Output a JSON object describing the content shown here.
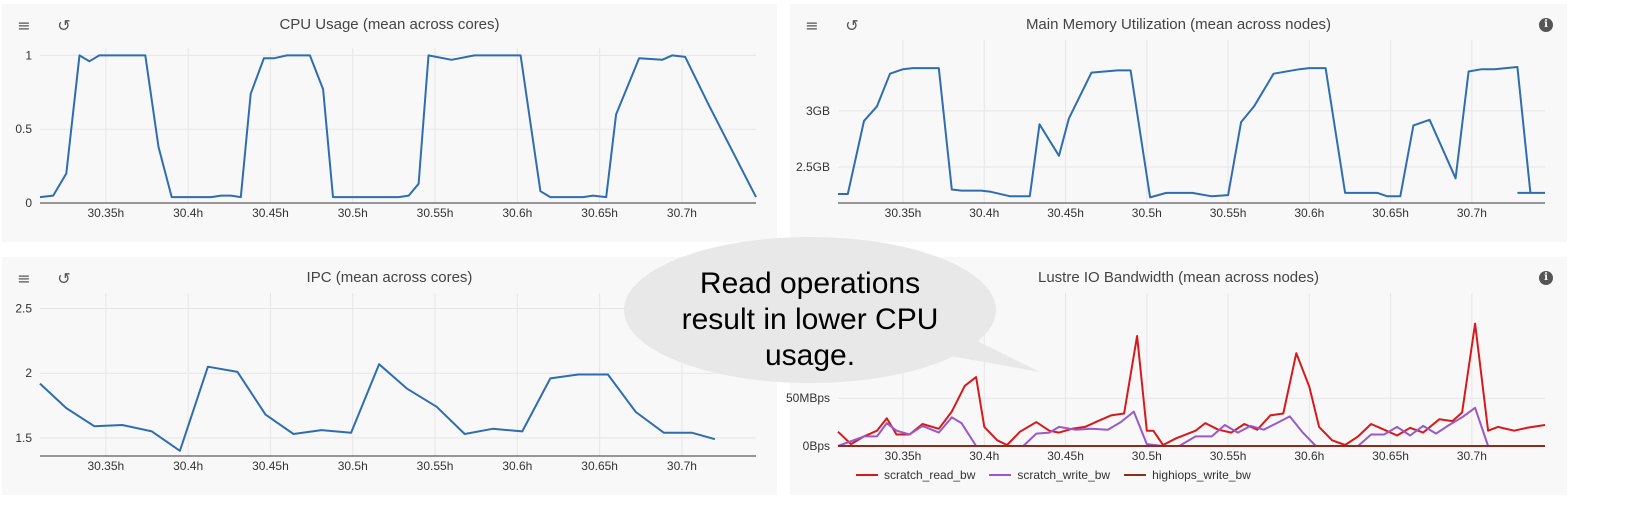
{
  "toolbar": {
    "menu_icon": "≡",
    "reset_icon": "↺",
    "info_icon": "i"
  },
  "panels": [
    {
      "title": "CPU Usage (mean across cores)",
      "has_info": false
    },
    {
      "title": "Main Memory Utilization (mean across nodes)",
      "has_info": true
    },
    {
      "title": "IPC (mean across cores)",
      "has_info": false
    },
    {
      "title": "Lustre IO Bandwidth (mean across nodes)",
      "has_info": true
    }
  ],
  "callout": {
    "lines": [
      "Read operations",
      "result in lower CPU",
      "usage."
    ]
  },
  "chart_data": [
    {
      "type": "line",
      "title": "CPU Usage (mean across cores)",
      "xlim": [
        30.31,
        30.745
      ],
      "ylim": [
        0,
        1.05
      ],
      "xticks": [
        30.35,
        30.4,
        30.45,
        30.5,
        30.55,
        30.6,
        30.65,
        30.7
      ],
      "xtick_labels": [
        "30.35h",
        "30.4h",
        "30.45h",
        "30.5h",
        "30.55h",
        "30.6h",
        "30.65h",
        "30.7h"
      ],
      "yticks": [
        0,
        0.5,
        1
      ],
      "ytick_labels": [
        "0",
        "0.5",
        "1"
      ],
      "grid": true,
      "series": [
        {
          "color": "#2f6db1",
          "x": [
            30.31,
            30.318,
            30.326,
            30.334,
            30.34,
            30.346,
            30.36,
            30.374,
            30.382,
            30.39,
            30.402,
            30.414,
            30.42,
            30.426,
            30.432,
            30.438,
            30.446,
            30.452,
            30.46,
            30.467,
            30.474,
            30.482,
            30.488,
            30.502,
            30.516,
            30.522,
            30.528,
            30.534,
            30.54,
            30.546,
            30.56,
            30.574,
            30.58,
            30.588,
            30.602,
            30.614,
            30.62,
            30.626,
            30.632,
            30.64,
            30.646,
            30.654,
            30.66,
            30.674,
            30.688,
            30.694,
            30.702,
            30.716,
            30.745
          ],
          "y": [
            0.04,
            0.05,
            0.2,
            1.0,
            0.96,
            1.0,
            1.0,
            1.0,
            0.38,
            0.04,
            0.04,
            0.04,
            0.05,
            0.05,
            0.04,
            0.74,
            0.98,
            0.98,
            1.0,
            1.0,
            1.0,
            0.77,
            0.04,
            0.04,
            0.04,
            0.04,
            0.04,
            0.05,
            0.13,
            1.0,
            0.97,
            1.0,
            1.0,
            1.0,
            1.0,
            0.08,
            0.04,
            0.04,
            0.04,
            0.04,
            0.05,
            0.04,
            0.6,
            0.98,
            0.97,
            1.0,
            0.99,
            0.67,
            0.04
          ]
        }
      ]
    },
    {
      "type": "line",
      "title": "Main Memory Utilization (mean across nodes)",
      "xlim": [
        30.31,
        30.745
      ],
      "ylim": [
        2.18,
        3.63
      ],
      "xticks": [
        30.35,
        30.4,
        30.45,
        30.5,
        30.55,
        30.6,
        30.65,
        30.7
      ],
      "xtick_labels": [
        "30.35h",
        "30.4h",
        "30.45h",
        "30.5h",
        "30.55h",
        "30.6h",
        "30.65h",
        "30.7h"
      ],
      "yticks": [
        2.5,
        3
      ],
      "ytick_labels": [
        "2.5GB",
        "3GB"
      ],
      "grid": true,
      "series": [
        {
          "color": "#2f6db1",
          "x": [
            30.31,
            30.316,
            30.326,
            30.334,
            30.342,
            30.35,
            30.356,
            30.366,
            30.372,
            30.38,
            30.386,
            30.398,
            30.404,
            30.416,
            30.422,
            30.428,
            30.434,
            30.446,
            30.452,
            30.466,
            30.474,
            30.482,
            30.49,
            30.502,
            30.512,
            30.518,
            30.528,
            30.54,
            30.55,
            30.558,
            30.566,
            30.578,
            30.594,
            30.6,
            30.61,
            30.622,
            30.63,
            30.636,
            30.642,
            30.648,
            30.656,
            30.664,
            30.674,
            30.69,
            30.698,
            30.706,
            30.714,
            30.728,
            30.736
          ],
          "y": [
            2.26,
            2.26,
            2.91,
            3.04,
            3.33,
            3.37,
            3.38,
            3.38,
            3.38,
            2.3,
            2.29,
            2.29,
            2.28,
            2.24,
            2.24,
            2.24,
            2.88,
            2.6,
            2.93,
            3.34,
            3.35,
            3.36,
            3.36,
            2.23,
            2.27,
            2.27,
            2.27,
            2.24,
            2.25,
            2.9,
            3.04,
            3.33,
            3.37,
            3.38,
            3.38,
            2.27,
            2.27,
            2.27,
            2.27,
            2.24,
            2.24,
            2.87,
            2.92,
            2.4,
            3.35,
            3.37,
            3.37,
            3.39,
            2.27
          ]
        },
        {
          "color": "#2f6db1",
          "x": [
            30.728,
            30.736,
            30.745
          ],
          "y": [
            2.27,
            2.27,
            2.27
          ]
        }
      ]
    },
    {
      "type": "line",
      "title": "IPC (mean across cores)",
      "xlim": [
        30.31,
        30.745
      ],
      "ylim": [
        1.36,
        2.62
      ],
      "xticks": [
        30.35,
        30.4,
        30.45,
        30.5,
        30.55,
        30.6,
        30.65,
        30.7
      ],
      "xtick_labels": [
        "30.35h",
        "30.4h",
        "30.45h",
        "30.5h",
        "30.55h",
        "30.6h",
        "30.65h",
        "30.7h"
      ],
      "yticks": [
        1.5,
        2,
        2.5
      ],
      "ytick_labels": [
        "1.5",
        "2",
        "2.5"
      ],
      "grid": true,
      "series": [
        {
          "color": "#2f6db1",
          "x": [
            30.31,
            30.326,
            30.343,
            30.36,
            30.378,
            30.395,
            30.412,
            30.43,
            30.447,
            30.464,
            30.481,
            30.499,
            30.516,
            30.533,
            30.551,
            30.568,
            30.585,
            30.603,
            30.62,
            30.637,
            30.655,
            30.672,
            30.689,
            30.706,
            30.72
          ],
          "y": [
            1.92,
            1.73,
            1.59,
            1.6,
            1.55,
            1.4,
            2.05,
            2.01,
            1.68,
            1.53,
            1.56,
            1.54,
            2.07,
            1.88,
            1.74,
            1.53,
            1.57,
            1.55,
            1.96,
            1.99,
            1.99,
            1.7,
            1.54,
            1.54,
            1.49
          ]
        }
      ]
    },
    {
      "type": "line",
      "title": "Lustre IO Bandwidth (mean across nodes)",
      "xlim": [
        30.31,
        30.745
      ],
      "ylim": [
        0,
        160
      ],
      "xticks": [
        30.35,
        30.4,
        30.45,
        30.5,
        30.55,
        30.6,
        30.65,
        30.7
      ],
      "xtick_labels": [
        "30.35h",
        "30.4h",
        "30.45h",
        "30.5h",
        "30.55h",
        "30.6h",
        "30.65h",
        "30.7h"
      ],
      "yticks": [
        0,
        50
      ],
      "ytick_labels": [
        "0Bps",
        "50MBps"
      ],
      "grid": true,
      "legend_position": "bottom-left",
      "series": [
        {
          "name": "scratch_read_bw",
          "color": "#d7191c",
          "x": [
            30.31,
            30.318,
            30.326,
            30.334,
            30.34,
            30.346,
            30.354,
            30.362,
            30.372,
            30.38,
            30.388,
            30.395,
            30.4,
            30.408,
            30.414,
            30.422,
            30.432,
            30.44,
            30.446,
            30.454,
            30.462,
            30.47,
            30.478,
            30.486,
            30.494,
            30.5,
            30.504,
            30.51,
            30.518,
            30.53,
            30.536,
            30.544,
            30.552,
            30.56,
            30.568,
            30.576,
            30.584,
            30.592,
            30.6,
            30.606,
            30.614,
            30.622,
            30.63,
            30.638,
            30.646,
            30.654,
            30.662,
            30.67,
            30.68,
            30.688,
            30.694,
            30.702,
            30.71,
            30.716,
            30.726,
            30.734,
            30.745
          ],
          "y": [
            15,
            2,
            10,
            16,
            29,
            12,
            12,
            23,
            18,
            36,
            63,
            72,
            20,
            6,
            1,
            15,
            25,
            16,
            14,
            18,
            20,
            26,
            32,
            34,
            115,
            16,
            16,
            1,
            8,
            16,
            24,
            17,
            14,
            23,
            17,
            32,
            34,
            97,
            62,
            20,
            6,
            1,
            10,
            23,
            17,
            11,
            19,
            14,
            28,
            26,
            35,
            128,
            16,
            20,
            16,
            19,
            22
          ]
        },
        {
          "name": "scratch_write_bw",
          "color": "#9b59c8",
          "x": [
            30.31,
            30.326,
            30.334,
            30.34,
            30.346,
            30.354,
            30.362,
            30.372,
            30.38,
            30.386,
            30.395,
            30.4,
            30.41,
            30.424,
            30.432,
            30.44,
            30.446,
            30.456,
            30.466,
            30.476,
            30.484,
            30.492,
            30.5,
            30.51,
            30.52,
            30.53,
            30.54,
            30.548,
            30.556,
            30.564,
            30.572,
            30.58,
            30.588,
            30.596,
            30.604,
            30.62,
            30.63,
            30.638,
            30.646,
            30.654,
            30.662,
            30.67,
            30.678,
            30.686,
            30.694,
            30.702,
            30.71,
            30.718
          ],
          "y": [
            0,
            10,
            10,
            24,
            16,
            12,
            21,
            14,
            30,
            24,
            0,
            0,
            0,
            0,
            13,
            14,
            20,
            17,
            18,
            17,
            25,
            36,
            2,
            0,
            0,
            10,
            10,
            22,
            14,
            21,
            17,
            24,
            31,
            14,
            0,
            0,
            0,
            12,
            12,
            20,
            11,
            21,
            13,
            22,
            30,
            40,
            0,
            0
          ]
        },
        {
          "name": "highiops_write_bw",
          "color": "#8b2c1c",
          "x": [
            30.31,
            30.745
          ],
          "y": [
            0,
            0
          ]
        }
      ]
    }
  ]
}
